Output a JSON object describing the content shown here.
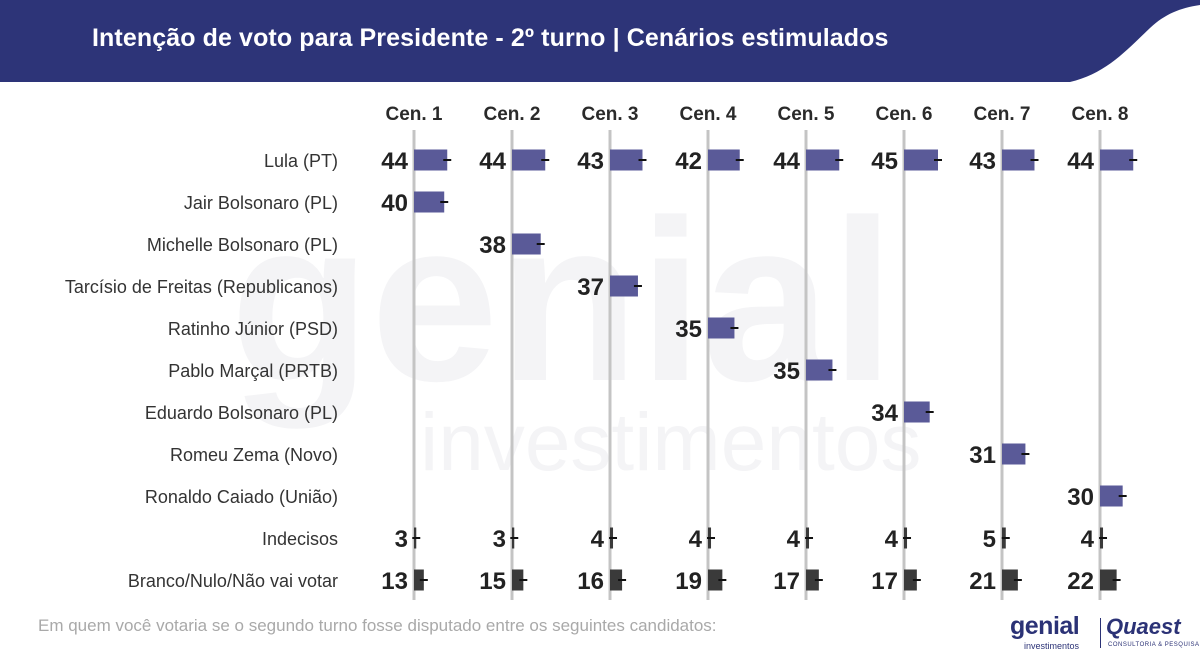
{
  "header": {
    "title": "Intenção de voto para Presidente - 2º turno | Cenários estimulados",
    "bg_color": "#2d3478"
  },
  "watermark": {
    "word": "genial",
    "sub": "investimentos",
    "color": "#f4f4f6"
  },
  "chart_data": {
    "type": "bar",
    "scenarios": [
      "Cen. 1",
      "Cen. 2",
      "Cen. 3",
      "Cen. 4",
      "Cen. 5",
      "Cen. 6",
      "Cen. 7",
      "Cen. 8"
    ],
    "rows": [
      "Lula (PT)",
      "Jair Bolsonaro (PL)",
      "Michelle Bolsonaro (PL)",
      "Tarcísio de Freitas (Republicanos)",
      "Ratinho Júnior (PSD)",
      "Pablo Marçal (PRTB)",
      "Eduardo Bolsonaro (PL)",
      "Romeu Zema (Novo)",
      "Ronaldo Caiado (União)",
      "Indecisos",
      "Branco/Nulo/Não vai votar"
    ],
    "values": [
      [
        44,
        44,
        43,
        42,
        44,
        45,
        43,
        44
      ],
      [
        40,
        null,
        null,
        null,
        null,
        null,
        null,
        null
      ],
      [
        null,
        38,
        null,
        null,
        null,
        null,
        null,
        null
      ],
      [
        null,
        null,
        37,
        null,
        null,
        null,
        null,
        null
      ],
      [
        null,
        null,
        null,
        35,
        null,
        null,
        null,
        null
      ],
      [
        null,
        null,
        null,
        null,
        35,
        null,
        null,
        null
      ],
      [
        null,
        null,
        null,
        null,
        null,
        34,
        null,
        null
      ],
      [
        null,
        null,
        null,
        null,
        null,
        null,
        31,
        null
      ],
      [
        null,
        null,
        null,
        null,
        null,
        null,
        null,
        30
      ],
      [
        3,
        3,
        4,
        4,
        4,
        4,
        5,
        4
      ],
      [
        13,
        15,
        16,
        19,
        17,
        17,
        21,
        22
      ]
    ],
    "colors": {
      "candidate": "#5a5a98",
      "other": "#3a3a3a",
      "error_bar": "#111111",
      "column_line": "#c4c4c4"
    },
    "max_value": 45,
    "error_bars": true
  },
  "footnote": "Em quem você votaria se o segundo turno fosse disputado entre os seguintes candidatos:",
  "logos": {
    "genial": "genial",
    "genial_sub": "investimentos",
    "quaest": "Quaest",
    "quaest_sub": "CONSULTORIA & PESQUISA"
  }
}
